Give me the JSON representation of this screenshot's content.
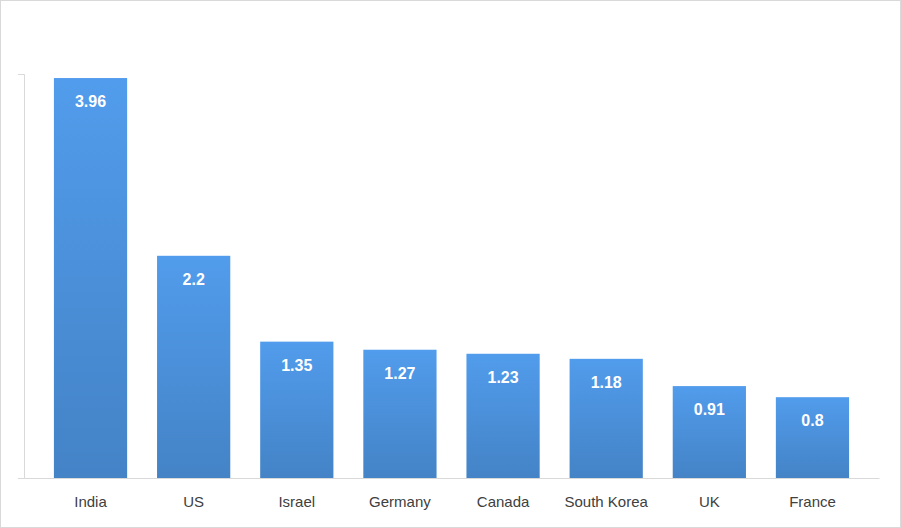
{
  "chart_data": {
    "type": "bar",
    "categories": [
      "India",
      "US",
      "Israel",
      "Germany",
      "Canada",
      "South Korea",
      "UK",
      "France"
    ],
    "values": [
      3.96,
      2.2,
      1.35,
      1.27,
      1.23,
      1.18,
      0.91,
      0.8
    ],
    "color": "#4a8fd8",
    "ylim": [
      0,
      4
    ],
    "grid": false,
    "data_labels": true,
    "tick_labels": "x"
  }
}
